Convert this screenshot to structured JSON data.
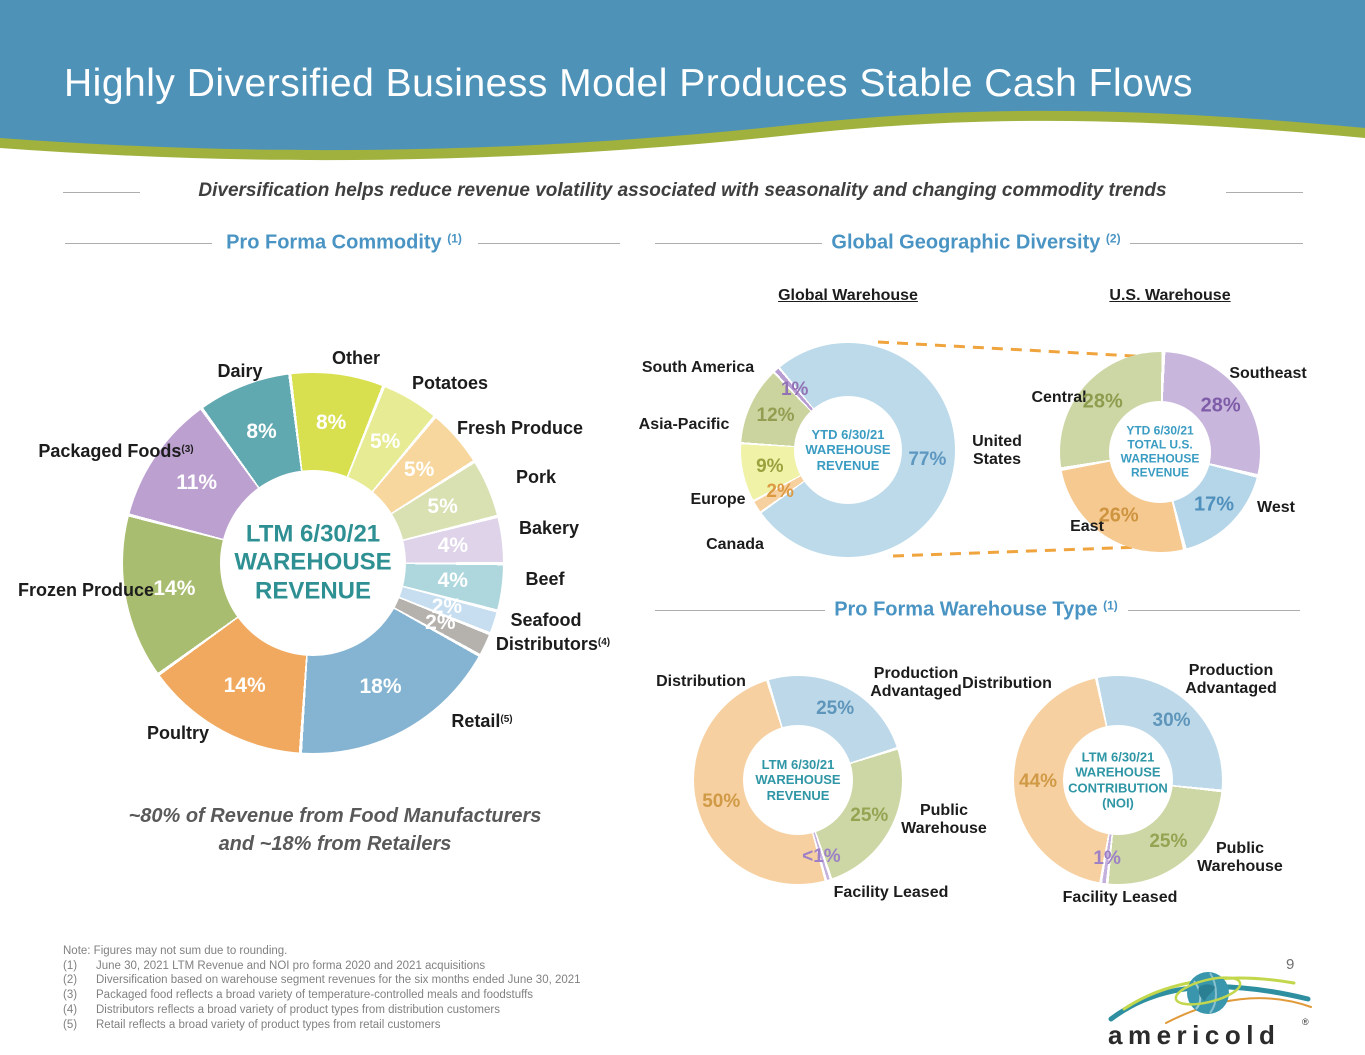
{
  "slide": {
    "title": "Highly Diversified Business Model Produces Stable Cash Flows",
    "subtitle": "Diversification helps reduce revenue volatility associated with seasonality and changing commodity trends",
    "page_number": "9"
  },
  "colors": {
    "banner_blue": "#4e92b8",
    "wave_green": "#a0b13e",
    "heading_blue": "#4a94c4",
    "dashed_orange": "#f0a43e"
  },
  "sections": {
    "commodity": {
      "title": "Pro Forma Commodity",
      "sup": "(1)"
    },
    "geographic": {
      "title": "Global Geographic Diversity",
      "sup": "(2)",
      "sub_left": "Global Warehouse",
      "sub_right": "U.S. Warehouse"
    },
    "warehouse_type": {
      "title": "Pro Forma Warehouse Type",
      "sup": "(1)"
    }
  },
  "callout": {
    "line1": "~80% of Revenue from Food Manufacturers",
    "line2": "and ~18% from Retailers"
  },
  "footnotes": {
    "note": "Note: Figures may not sum due to rounding.",
    "items": [
      {
        "num": "(1)",
        "text": "June 30, 2021 LTM Revenue and NOI pro forma 2020 and 2021 acquisitions"
      },
      {
        "num": "(2)",
        "text": "Diversification based on warehouse segment revenues for the six months ended June 30, 2021"
      },
      {
        "num": "(3)",
        "text": "Packaged food reflects a broad variety of temperature-controlled meals and foodstuffs"
      },
      {
        "num": "(4)",
        "text": "Distributors reflects a broad variety of product types from distribution customers"
      },
      {
        "num": "(5)",
        "text": "Retail reflects a broad variety of product types from retail customers"
      }
    ]
  },
  "logo": {
    "text": "americold",
    "reg": "®"
  },
  "chart_data": [
    {
      "id": "pro-forma-commodity",
      "type": "pie",
      "title": "Pro Forma Commodity",
      "center": [
        "LTM 6/30/21",
        "WAREHOUSE",
        "REVENUE"
      ],
      "center_color": "#2e9093",
      "center_size": 24,
      "pct_size": 21,
      "start_angle": -7,
      "gap_deg": 1.0,
      "segments": [
        {
          "name": "Other",
          "value": 8,
          "label": "8%",
          "color": "#d9e04f",
          "label_color": "#ffffff"
        },
        {
          "name": "Potatoes",
          "value": 5,
          "label": "5%",
          "color": "#e6eb94",
          "label_color": "#ffffff"
        },
        {
          "name": "Fresh Produce",
          "value": 5,
          "label": "5%",
          "color": "#f8d79f",
          "label_color": "#ffffff"
        },
        {
          "name": "Pork",
          "value": 5,
          "label": "5%",
          "color": "#d9e0b2",
          "label_color": "#ffffff"
        },
        {
          "name": "Bakery",
          "value": 4,
          "label": "4%",
          "color": "#ded3e9",
          "label_color": "#ffffff"
        },
        {
          "name": "Beef",
          "value": 4,
          "label": "4%",
          "color": "#aed7dd",
          "label_color": "#ffffff"
        },
        {
          "name": "Seafood",
          "value": 2,
          "label": "2%",
          "color": "#c6def0",
          "label_color": "#ffffff"
        },
        {
          "name": "Distributors",
          "sup": "(4)",
          "value": 2,
          "label": "2%",
          "color": "#b5b2ae",
          "label_color": "#ffffff"
        },
        {
          "name": "Retail",
          "sup": "(5)",
          "value": 18,
          "label": "18%",
          "color": "#85b4d2",
          "label_color": "#ffffff"
        },
        {
          "name": "Poultry",
          "value": 14,
          "label": "14%",
          "color": "#f0a95e",
          "label_color": "#ffffff"
        },
        {
          "name": "Frozen Produce",
          "value": 14,
          "label": "14%",
          "color": "#a9bd70",
          "label_color": "#ffffff"
        },
        {
          "name": "Packaged Foods",
          "sup": "(3)",
          "value": 11,
          "label": "11%",
          "color": "#bca0d0",
          "label_color": "#ffffff"
        },
        {
          "name": "Dairy",
          "value": 8,
          "label": "8%",
          "color": "#61a9b0",
          "label_color": "#ffffff"
        }
      ]
    },
    {
      "id": "global-warehouse",
      "type": "pie",
      "title": "Global Warehouse",
      "center": [
        "YTD 6/30/21",
        "WAREHOUSE",
        "REVENUE"
      ],
      "center_color": "#3a9cc2",
      "center_size": 13,
      "pct_size": 19,
      "start_angle": -40,
      "gap_deg": 1.2,
      "segments": [
        {
          "name": "United States",
          "value": 77,
          "label": "77%",
          "color": "#bcdaea",
          "label_color": "#5e97c0"
        },
        {
          "name": "Canada",
          "value": 2,
          "label": "2%",
          "color": "#f7d0a0",
          "label_color": "#dc9a42"
        },
        {
          "name": "Europe",
          "value": 9,
          "label": "9%",
          "color": "#f0f2a8",
          "label_color": "#9aa23e"
        },
        {
          "name": "Asia-Pacific",
          "value": 12,
          "label": "12%",
          "color": "#cbd49e",
          "label_color": "#949e52"
        },
        {
          "name": "South America",
          "value": 1,
          "label": "1%",
          "color": "#b79cd2",
          "label_color": "#9271b5"
        }
      ]
    },
    {
      "id": "us-warehouse",
      "type": "pie",
      "title": "U.S. Warehouse",
      "center": [
        "YTD 6/30/21",
        "TOTAL U.S.",
        "WAREHOUSE",
        "REVENUE"
      ],
      "center_color": "#3a9cc2",
      "center_size": 12,
      "pct_size": 20,
      "start_angle": 2,
      "gap_deg": 2.2,
      "segments": [
        {
          "name": "Southeast",
          "value": 28,
          "label": "28%",
          "color": "#c9b6dd",
          "label_color": "#7e5ca8"
        },
        {
          "name": "West",
          "value": 17,
          "label": "17%",
          "color": "#b5d5e8",
          "label_color": "#5090bd"
        },
        {
          "name": "East",
          "value": 26,
          "label": "26%",
          "color": "#f5c98f",
          "label_color": "#ce9440"
        },
        {
          "name": "Central",
          "value": 28,
          "label": "28%",
          "color": "#cdd7a6",
          "label_color": "#8d9d4e"
        }
      ]
    },
    {
      "id": "warehouse-type-revenue",
      "type": "pie",
      "title": "Pro Forma Warehouse Type - Revenue",
      "center": [
        "LTM 6/30/21",
        "WAREHOUSE",
        "REVENUE"
      ],
      "center_color": "#2f96a5",
      "center_size": 13,
      "pct_size": 19,
      "start_angle": -17,
      "gap_deg": 1.6,
      "segments": [
        {
          "name": "Production Advantaged",
          "value": 25,
          "label": "25%",
          "color": "#bdd9e9",
          "label_color": "#5e95ba"
        },
        {
          "name": "Public Warehouse",
          "value": 25,
          "label": "25%",
          "color": "#ccd7a5",
          "label_color": "#93a452"
        },
        {
          "name": "Facility Leased",
          "value": 0.8,
          "label": "<1%",
          "color": "#c4b0dd",
          "label_color": "#9d80c6"
        },
        {
          "name": "Distribution",
          "value": 50,
          "label": "50%",
          "color": "#f6d0a0",
          "label_color": "#d09a46"
        }
      ]
    },
    {
      "id": "warehouse-type-noi",
      "type": "pie",
      "title": "Pro Forma Warehouse Type - Contribution (NOI)",
      "center": [
        "LTM 6/30/21",
        "WAREHOUSE",
        "CONTRIBUTION",
        "(NOI)"
      ],
      "center_color": "#2f96a5",
      "center_size": 13,
      "pct_size": 19,
      "start_angle": -12,
      "gap_deg": 1.6,
      "segments": [
        {
          "name": "Production Advantaged",
          "value": 30,
          "label": "30%",
          "color": "#bdd9e9",
          "label_color": "#5e95ba"
        },
        {
          "name": "Public Warehouse",
          "value": 25,
          "label": "25%",
          "color": "#ccd7a5",
          "label_color": "#93a452"
        },
        {
          "name": "Facility Leased",
          "value": 1,
          "label": "1%",
          "color": "#c4b0dd",
          "label_color": "#9d80c6"
        },
        {
          "name": "Distribution",
          "value": 44,
          "label": "44%",
          "color": "#f6d0a0",
          "label_color": "#d09a46"
        }
      ]
    }
  ]
}
